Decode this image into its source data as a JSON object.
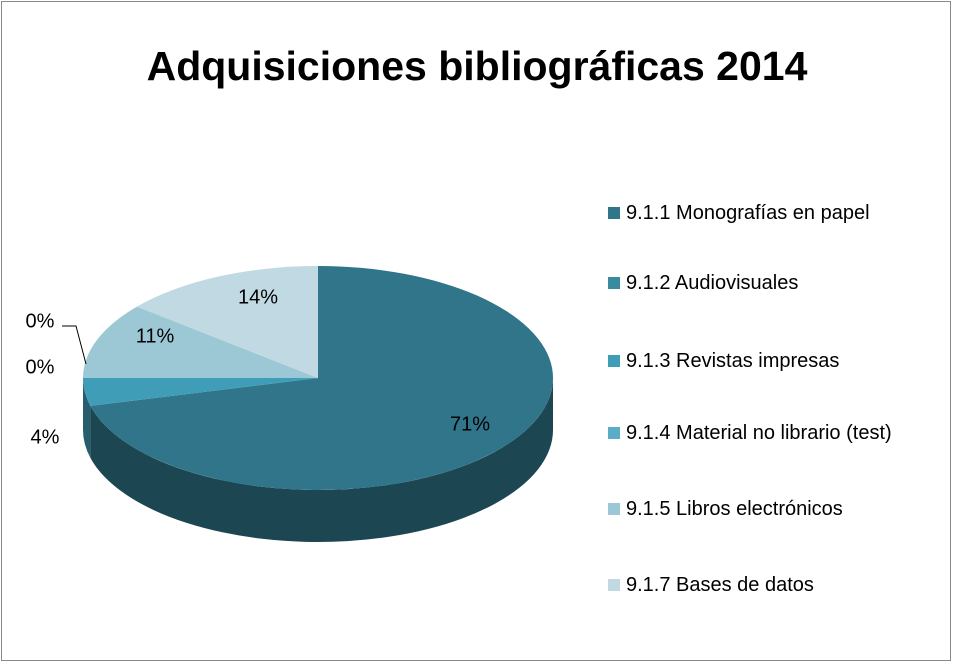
{
  "chart_data": {
    "type": "pie",
    "title": "Adquisiciones bibliográficas 2014",
    "categories": [
      "9.1.1 Monografías en papel",
      "9.1.2 Audiovisuales",
      "9.1.3 Revistas impresas",
      "9.1.4 Material no librario (test)",
      "9.1.5 Libros electrónicos",
      "9.1.7 Bases de datos"
    ],
    "values": [
      71,
      0,
      4,
      0,
      11,
      14
    ],
    "value_labels": [
      "71%",
      "0%",
      "4%",
      "0%",
      "11%",
      "14%"
    ],
    "colors": [
      "#31758a",
      "#3a8aa0",
      "#3f9db8",
      "#5aadc6",
      "#9cc8d6",
      "#c0d9e2"
    ],
    "legend": "right"
  }
}
